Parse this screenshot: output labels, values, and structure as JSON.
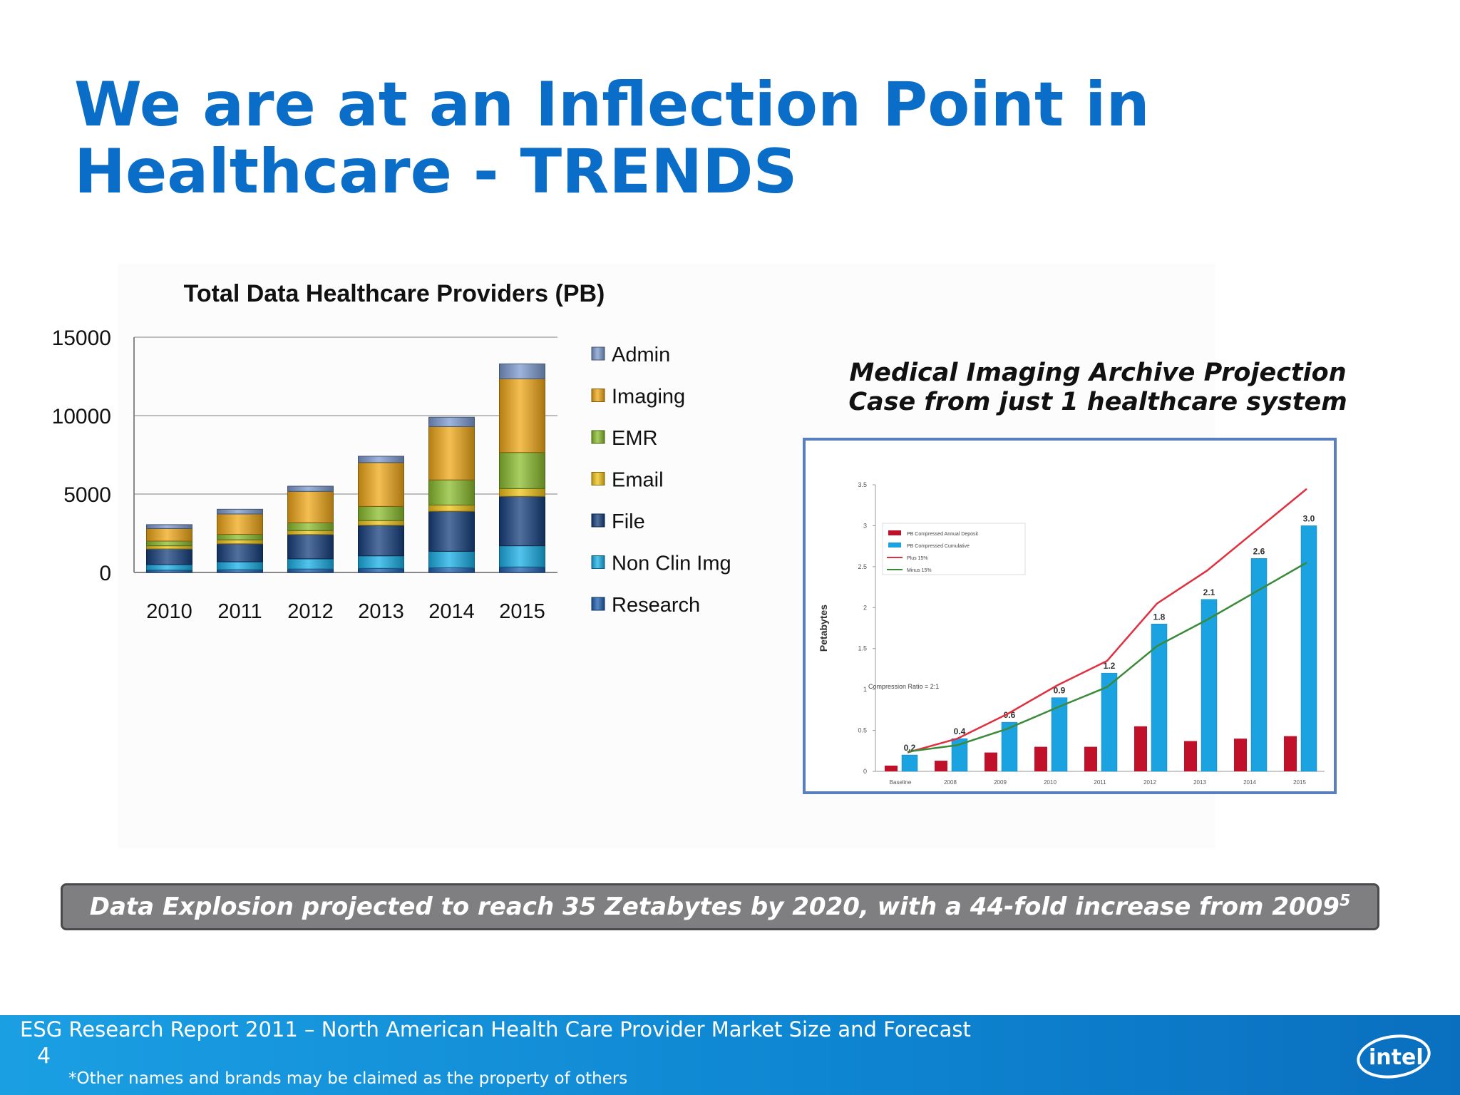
{
  "slide": {
    "title_line1": "We are at an Inflection Point in",
    "title_line2": "Healthcare - TRENDS",
    "banner_text": "Data Explosion projected to reach 35 Zetabytes by 2020, with a 44-fold increase from 2009",
    "banner_superscript": "5",
    "footer_source": "ESG Research Report 2011 – North American Health Care Provider Market Size and Forecast",
    "slide_number": "4",
    "disclaimer": "*Other names and brands may be claimed as the property of others",
    "logo_text": "intel",
    "colors": {
      "title": "#0a6ec8",
      "footer": "#0e84d0",
      "banner": "#7f7f81"
    }
  },
  "chart_data": [
    {
      "type": "bar",
      "stacked": true,
      "title": "Total Data Healthcare Providers (PB)",
      "categories": [
        "2010",
        "2011",
        "2012",
        "2013",
        "2014",
        "2015"
      ],
      "y_ticks": [
        "0",
        "5000",
        "10000",
        "15000"
      ],
      "ylim": [
        0,
        15000
      ],
      "grid": true,
      "legend_position": "right",
      "legend_order": [
        "Admin",
        "Imaging",
        "EMR",
        "Email",
        "File",
        "Non Clin Img",
        "Research"
      ],
      "series": [
        {
          "name": "Research",
          "color": "#1f5fb0",
          "values": [
            150,
            180,
            220,
            260,
            300,
            350
          ]
        },
        {
          "name": "Non Clin Img",
          "color": "#1ab0e8",
          "values": [
            350,
            500,
            650,
            800,
            1050,
            1350
          ]
        },
        {
          "name": "File",
          "color": "#17407e",
          "values": [
            1000,
            1150,
            1550,
            1950,
            2550,
            3150
          ]
        },
        {
          "name": "Email",
          "color": "#f2c418",
          "values": [
            200,
            250,
            250,
            300,
            400,
            500
          ]
        },
        {
          "name": "EMR",
          "color": "#8cbd2e",
          "values": [
            300,
            350,
            500,
            900,
            1600,
            2300
          ]
        },
        {
          "name": "Imaging",
          "color": "#f0a818",
          "values": [
            800,
            1300,
            2000,
            2800,
            3400,
            4700
          ]
        },
        {
          "name": "Admin",
          "color": "#7d9bd0",
          "values": [
            250,
            300,
            330,
            400,
            600,
            950
          ]
        }
      ]
    },
    {
      "type": "bar",
      "title_line1": "Medical Imaging Archive Projection",
      "title_line2": "Case from just 1 healthcare system",
      "categories": [
        "Baseline",
        "2008",
        "2009",
        "2010",
        "2011",
        "2012",
        "2013",
        "2014",
        "2015"
      ],
      "ylabel": "Petabytes",
      "ylim": [
        0,
        3.5
      ],
      "y_ticks": [
        "0",
        "0.5",
        "1",
        "1.5",
        "2",
        "2.5",
        "3",
        "3.5"
      ],
      "grid": false,
      "legend_position": "top-left",
      "annotation": "Compression Ratio = 2:1",
      "series": [
        {
          "name": "PB Compressed Annual Deposit",
          "kind": "bar",
          "color": "#c0102a",
          "values": [
            0.07,
            0.13,
            0.23,
            0.3,
            0.3,
            0.55,
            0.37,
            0.4,
            0.43
          ]
        },
        {
          "name": "PB Compressed Cumulative",
          "kind": "bar",
          "color": "#1aa3e0",
          "values": [
            0.2,
            0.4,
            0.6,
            0.9,
            1.2,
            1.8,
            2.1,
            2.6,
            3.0
          ]
        },
        {
          "name": "Plus 15%",
          "kind": "line",
          "color": "#e03040",
          "values": [
            0.23,
            0.4,
            0.7,
            1.05,
            1.35,
            2.05,
            2.45,
            2.95,
            3.45
          ]
        },
        {
          "name": "Minus 15%",
          "kind": "line",
          "color": "#3a8a3a",
          "values": [
            0.24,
            0.32,
            0.52,
            0.78,
            1.03,
            1.53,
            1.85,
            2.2,
            2.55
          ]
        }
      ],
      "data_labels": [
        "0.2",
        "0.4",
        "0.6",
        "0.9",
        "1.2",
        "1.8",
        "2.1",
        "2.6",
        "3.0"
      ]
    }
  ]
}
